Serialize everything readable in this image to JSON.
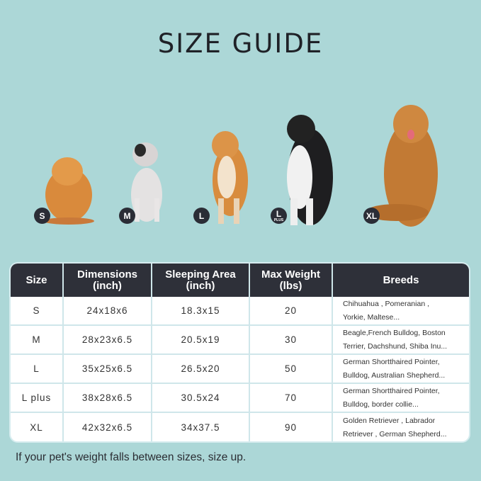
{
  "title": "SIZE GUIDE",
  "badges": [
    {
      "label": "S"
    },
    {
      "label": "M"
    },
    {
      "label": "L",
      "sub": "PLUS"
    },
    {
      "label": "XL"
    }
  ],
  "badge_l": "L",
  "table": {
    "headers": [
      [
        "Size"
      ],
      [
        "Dimensions",
        "(inch)"
      ],
      [
        "Sleeping Area",
        "(inch)"
      ],
      [
        "Max Weight",
        "(lbs)"
      ],
      [
        "Breeds"
      ]
    ],
    "rows": [
      {
        "size": "S",
        "dimensions": "24x18x6",
        "sleeping_area": "18.3x15",
        "max_weight": "20",
        "breeds": [
          "Chihuahua , Pomeranian ,",
          "Yorkie, Maltese..."
        ]
      },
      {
        "size": "M",
        "dimensions": "28x23x6.5",
        "sleeping_area": "20.5x19",
        "max_weight": "30",
        "breeds": [
          "Beagle,French Bulldog, Boston",
          "Terrier, Dachshund, Shiba Inu..."
        ]
      },
      {
        "size": "L",
        "dimensions": "35x25x6.5",
        "sleeping_area": "26.5x20",
        "max_weight": "50",
        "breeds": [
          "German Shortthaired Pointer,",
          "Bulldog, Australian Shepherd..."
        ]
      },
      {
        "size": "L plus",
        "dimensions": "38x28x6.5",
        "sleeping_area": "30.5x24",
        "max_weight": "70",
        "breeds": [
          "German Shortthaired Pointer,",
          "Bulldog, border collie..."
        ]
      },
      {
        "size": "XL",
        "dimensions": "42x32x6.5",
        "sleeping_area": "34x37.5",
        "max_weight": "90",
        "breeds": [
          "Golden Retriever , Labrador",
          "Retriever , German Shepherd..."
        ]
      }
    ]
  },
  "note": "If your pet's weight falls between sizes, size up.",
  "colors": {
    "background": "#acd7d7",
    "header": "#2e3039",
    "badge": "#2b2d36"
  }
}
